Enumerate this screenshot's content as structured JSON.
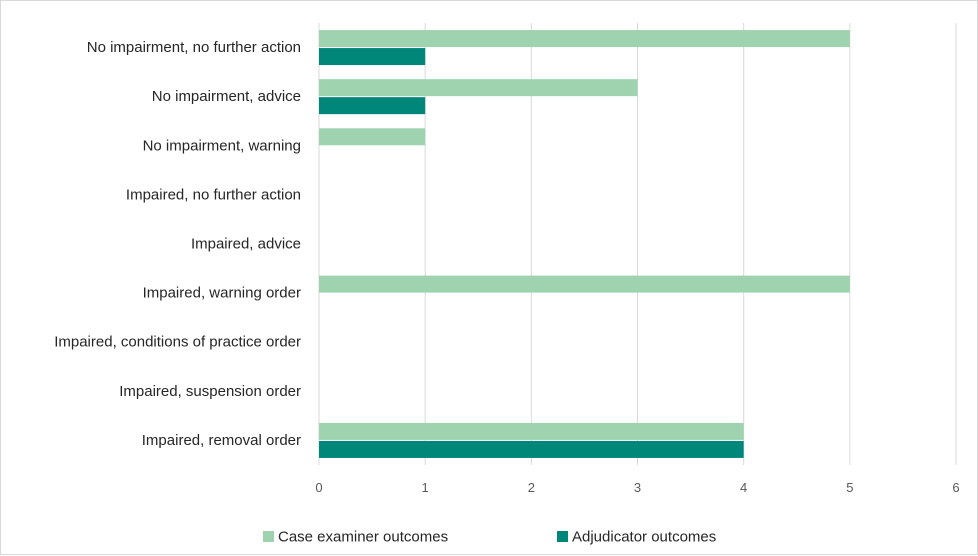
{
  "chart_data": {
    "type": "bar",
    "orientation": "horizontal",
    "title": "",
    "xlabel": "",
    "ylabel": "",
    "categories": [
      "No impairment, no further action",
      "No impairment, advice",
      "No impairment, warning",
      "Impaired, no further action",
      "Impaired, advice",
      "Impaired, warning order",
      "Impaired, conditions of practice order",
      "Impaired, suspension order",
      "Impaired, removal order"
    ],
    "series": [
      {
        "name": "Case examiner outcomes",
        "color": "#9fd3b0",
        "values": [
          5,
          3,
          1,
          0,
          0,
          5,
          0,
          0,
          4
        ]
      },
      {
        "name": "Adjudicator outcomes",
        "color": "#00877a",
        "values": [
          1,
          1,
          0,
          0,
          0,
          0,
          0,
          0,
          4
        ]
      }
    ],
    "xlim": [
      0,
      6
    ],
    "xticks": [
      "0",
      "1",
      "2",
      "3",
      "4",
      "5",
      "6"
    ],
    "grid": "vertical",
    "legend": "bottom-center"
  }
}
